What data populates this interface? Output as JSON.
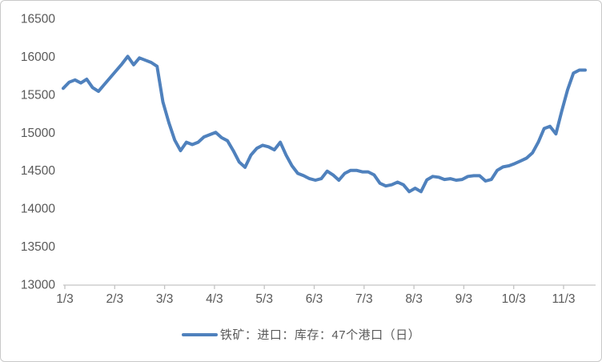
{
  "chart_data": {
    "type": "line",
    "title": "",
    "xlabel": "",
    "ylabel": "",
    "grid": "off",
    "legend_position": "bottom",
    "y_range": [
      13000,
      16500
    ],
    "y_ticks": [
      16500,
      16000,
      15500,
      15000,
      14500,
      14000,
      13500,
      13000
    ],
    "x_tick_labels": [
      "1/3",
      "2/3",
      "3/3",
      "4/3",
      "5/3",
      "6/3",
      "7/3",
      "8/3",
      "9/3",
      "10/3",
      "11/3"
    ],
    "series": [
      {
        "name": "铁矿：进口：库存：47个港口（日）",
        "color": "#4F81BD",
        "values": [
          15580,
          15660,
          15690,
          15650,
          15700,
          15590,
          15540,
          15630,
          15720,
          15810,
          15900,
          16000,
          15890,
          15980,
          15950,
          15920,
          15870,
          15400,
          15130,
          14900,
          14760,
          14870,
          14840,
          14870,
          14940,
          14970,
          15000,
          14930,
          14890,
          14760,
          14610,
          14540,
          14700,
          14790,
          14830,
          14810,
          14770,
          14870,
          14700,
          14560,
          14460,
          14430,
          14390,
          14370,
          14390,
          14490,
          14440,
          14370,
          14460,
          14500,
          14500,
          14480,
          14480,
          14440,
          14330,
          14295,
          14310,
          14345,
          14310,
          14220,
          14265,
          14220,
          14375,
          14420,
          14410,
          14380,
          14390,
          14370,
          14380,
          14420,
          14430,
          14430,
          14360,
          14380,
          14500,
          14545,
          14560,
          14590,
          14625,
          14660,
          14730,
          14870,
          15050,
          15080,
          14980,
          15280,
          15560,
          15780,
          15820,
          15820
        ]
      }
    ]
  },
  "legend": {
    "label": "铁矿：进口：库存：47个港口（日）"
  },
  "colors": {
    "line": "#4F81BD",
    "axis": "#c4c4c4",
    "text": "#595959",
    "frame_border": "#c9c9c9"
  }
}
